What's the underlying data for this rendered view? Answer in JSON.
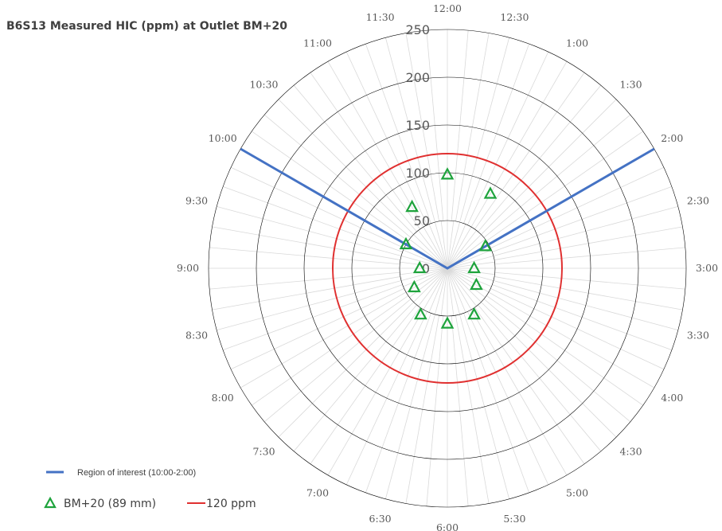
{
  "chart_data": {
    "type": "polar-scatter",
    "title": "B6S13 Measured HIC (ppm) at Outlet BM+20",
    "radial_axis": {
      "min": 0,
      "max": 250,
      "ticks": [
        0,
        50,
        100,
        150,
        200,
        250
      ]
    },
    "angular_labels": [
      "12:00",
      "12:30",
      "1:00",
      "1:30",
      "2:00",
      "2:30",
      "3:00",
      "3:30",
      "4:00",
      "4:30",
      "5:00",
      "5:30",
      "6:00",
      "6:30",
      "7:00",
      "7:30",
      "8:00",
      "8:30",
      "9:00",
      "9:30",
      "10:00",
      "10:30",
      "11:00",
      "11:30"
    ],
    "clock_positions": 24,
    "series": [
      {
        "name": "BM+20 (89 mm)",
        "marker": "triangle",
        "color": "#1ea33c",
        "points": [
          {
            "clock": "12:00",
            "value": 98
          },
          {
            "clock": "1:00",
            "value": 90
          },
          {
            "clock": "2:00",
            "value": 46
          },
          {
            "clock": "3:00",
            "value": 28
          },
          {
            "clock": "4:00",
            "value": 35
          },
          {
            "clock": "5:00",
            "value": 56
          },
          {
            "clock": "6:00",
            "value": 58
          },
          {
            "clock": "7:00",
            "value": 56
          },
          {
            "clock": "8:00",
            "value": 40
          },
          {
            "clock": "9:00",
            "value": 29
          },
          {
            "clock": "10:00",
            "value": 50
          },
          {
            "clock": "11:00",
            "value": 74
          }
        ]
      },
      {
        "name": "120 ppm",
        "type": "circle",
        "color": "#e03030",
        "value": 120
      },
      {
        "name": "Region of interest (10:00-2:00)",
        "type": "rays",
        "color": "#4472c4",
        "clocks": [
          "10:00",
          "2:00"
        ],
        "value": 250
      }
    ],
    "legend_position": "bottom-left",
    "grid": true
  },
  "legend": {
    "region_label": "Region of interest (10:00-2:00)",
    "bm_label": "BM+20 (89 mm)",
    "ppm_label": "120 ppm"
  },
  "colors": {
    "grid": "#d9d9d9",
    "ring": "#000000",
    "rays": "#4472c4",
    "threshold": "#e03030",
    "marker": "#1ea33c"
  }
}
